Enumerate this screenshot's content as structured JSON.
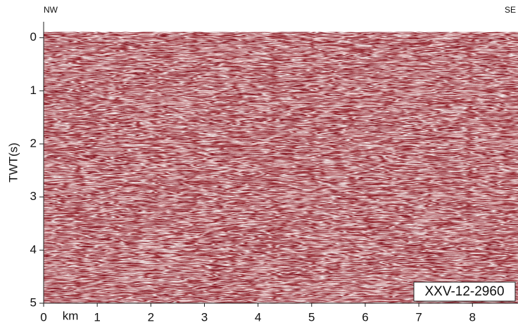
{
  "chart_data": {
    "type": "seismic-section",
    "y_label": "TWT(s)",
    "x_unit": "km",
    "left_label": "NW",
    "right_label": "SE",
    "line_name": "XXV-12-2960",
    "xlim": [
      0,
      8.85
    ],
    "xticks": [
      0,
      1,
      2,
      3,
      4,
      5,
      6,
      7,
      8
    ],
    "ylim": [
      -0.3,
      5
    ],
    "yticks": [
      0,
      1,
      2,
      3,
      4,
      5
    ],
    "color": "#8b1a1f"
  }
}
